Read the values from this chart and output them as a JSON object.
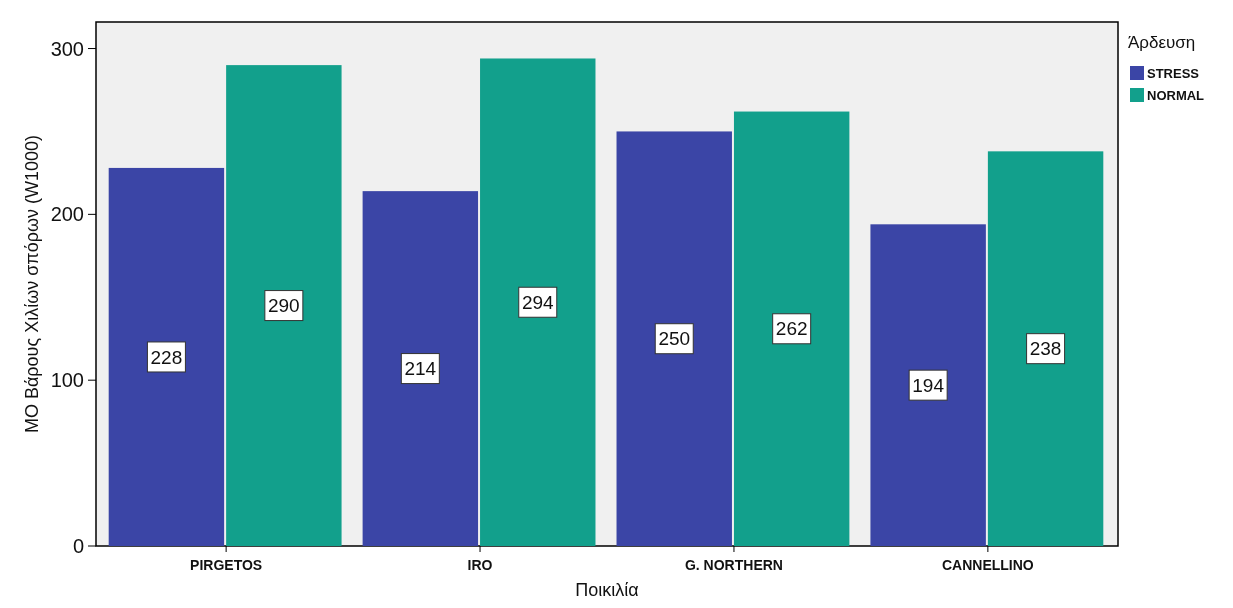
{
  "chart_data": {
    "type": "bar",
    "xlabel": "Ποικιλία",
    "ylabel": "ΜΟ Βάρους Χιλίων σπόρων (W1000)",
    "legend_title": "Άρδευση",
    "categories": [
      "PIRGETOS",
      "IRO",
      "G. NORTHERN",
      "CANNELLINO"
    ],
    "series": [
      {
        "name": "STRESS",
        "color": "#3b45a6",
        "values": [
          228,
          214,
          250,
          194
        ]
      },
      {
        "name": "NORMAL",
        "color": "#12a08c",
        "values": [
          290,
          294,
          262,
          238
        ]
      }
    ],
    "ylim": [
      0,
      316
    ],
    "yticks": [
      0,
      100,
      200,
      300
    ],
    "data_labels": true,
    "legend": "top right",
    "grid": false
  }
}
